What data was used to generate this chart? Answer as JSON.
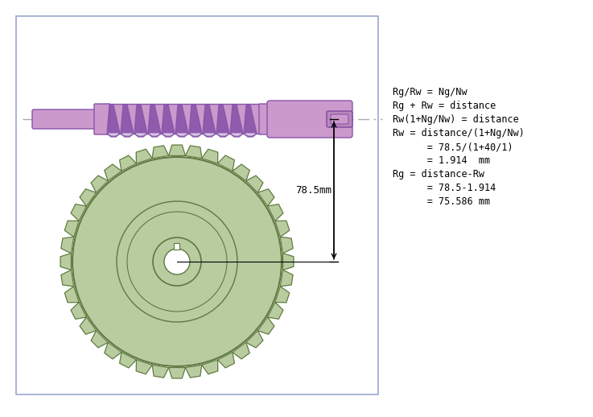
{
  "bg_color": "#ffffff",
  "border_color": "#99a8cc",
  "worm_color": "#cc99cc",
  "worm_dark": "#8855aa",
  "worm_mid": "#bb88bb",
  "gear_color": "#b8cca0",
  "gear_outline": "#607840",
  "gear_dark": "#7a9858",
  "dash_color": "#aaaaaa",
  "dim_color": "#000000",
  "text_lines": [
    "Rg/Rw = Ng/Nw",
    "Rg + Rw = distance",
    "Rw(1+Ng/Nw) = distance",
    "Rw = distance/(1+Ng/Nw)",
    "      = 78.5/(1+40/1)",
    "      = 1.914  mm",
    "Rg = distance-Rw",
    "      = 78.5-1.914",
    "      = 75.586 mm"
  ],
  "dim_label": "78.5mm",
  "fig_width": 7.37,
  "fig_height": 5.18,
  "dpi": 100
}
